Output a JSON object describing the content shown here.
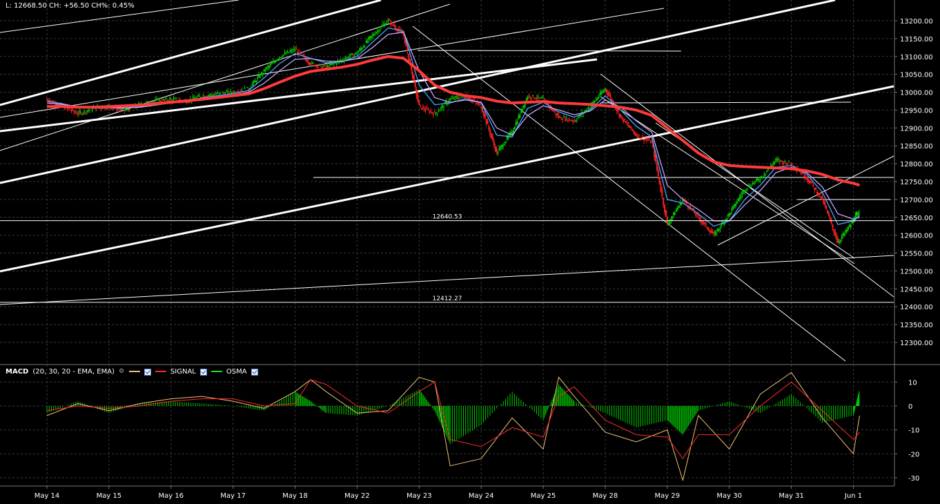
{
  "header": {
    "info_text": "L: 12668.50 CH: +56.50 CH%: 0.45%"
  },
  "macd_legend": {
    "title": "MACD",
    "params": "(20, 30, 20 - EMA, EMA)",
    "signal_label": "SIGNAL",
    "osma_label": "OSMA",
    "wrench_icon": "wrench-icon",
    "colors": {
      "macd": "#f2c27a",
      "signal": "#ff2a2a",
      "osma": "#22dd22"
    }
  },
  "price_labels": {
    "level_1": "12640.53",
    "level_2": "12412.27"
  },
  "colors": {
    "background": "#000000",
    "price_up": "#00cc00",
    "price_down": "#ff2222",
    "ema_fast": "#4aa8ff",
    "ema_mid": "#c9a6ff",
    "ma_slow": "#ff3a3a",
    "trendline": "#ffffff",
    "grid": "#3a3a3a"
  },
  "chart_data": [
    {
      "type": "line",
      "name": "price",
      "ylim": [
        12250,
        13250
      ],
      "yticks": [
        12300,
        12350,
        12400,
        12450,
        12500,
        12550,
        12600,
        12650,
        12700,
        12750,
        12800,
        12850,
        12900,
        12950,
        13000,
        13050,
        13100,
        13150,
        13200
      ],
      "ytick_labels": [
        "12300.00",
        "12350.00",
        "12400.00",
        "12450.00",
        "12500.00",
        "12550.00",
        "12600.00",
        "12650.00",
        "12700.00",
        "12750.00",
        "12800.00",
        "12850.00",
        "12900.00",
        "12950.00",
        "13000.00",
        "13050.00",
        "13100.00",
        "13150.00",
        "13200.00"
      ],
      "xticks": [
        "May 14",
        "May 15",
        "May 16",
        "May 17",
        "May 18",
        "May 22",
        "May 23",
        "May 24",
        "May 25",
        "May 28",
        "May 29",
        "May 30",
        "May 31",
        "Jun 1"
      ],
      "x": [
        0,
        0.25,
        0.5,
        0.75,
        1,
        1.25,
        1.5,
        1.75,
        2,
        2.25,
        2.5,
        2.75,
        3,
        3.25,
        3.5,
        3.75,
        4,
        4.25,
        4.5,
        4.75,
        5,
        5.25,
        5.5,
        5.75,
        6,
        6.25,
        6.5,
        6.75,
        7,
        7.25,
        7.5,
        7.75,
        8,
        8.25,
        8.5,
        8.75,
        9,
        9.25,
        9.5,
        9.75,
        10,
        10.25,
        10.5,
        10.75,
        11,
        11.25,
        11.5,
        11.75,
        12,
        12.25,
        12.5,
        12.75,
        13,
        13.1
      ],
      "series": [
        {
          "values": [
            12980,
            12960,
            12940,
            12955,
            12960,
            12950,
            12965,
            12975,
            12980,
            12975,
            12990,
            12995,
            13000,
            13010,
            13060,
            13100,
            13120,
            13080,
            13070,
            13090,
            13110,
            13160,
            13200,
            13160,
            12960,
            12940,
            12980,
            12990,
            12960,
            12830,
            12890,
            12990,
            12980,
            12930,
            12920,
            12960,
            13010,
            12930,
            12880,
            12860,
            12630,
            12700,
            12650,
            12600,
            12660,
            12730,
            12760,
            12810,
            12800,
            12760,
            12700,
            12580,
            12640,
            12670
          ]
        },
        {
          "values": [
            12975,
            12968,
            12958,
            12955,
            12957,
            12955,
            12960,
            12968,
            12975,
            12976,
            12984,
            12990,
            12996,
            13005,
            13040,
            13080,
            13108,
            13095,
            13082,
            13085,
            13100,
            13140,
            13180,
            13170,
            13020,
            12965,
            12970,
            12982,
            12970,
            12880,
            12875,
            12955,
            12972,
            12945,
            12930,
            12950,
            12990,
            12950,
            12905,
            12875,
            12700,
            12690,
            12660,
            12625,
            12640,
            12700,
            12740,
            12790,
            12795,
            12770,
            12720,
            12630,
            12640,
            12655
          ]
        },
        {
          "values": [
            12970,
            12966,
            12960,
            12957,
            12957,
            12956,
            12958,
            12964,
            12970,
            12973,
            12980,
            12986,
            12992,
            13000,
            13025,
            13060,
            13092,
            13094,
            13087,
            13086,
            13094,
            13125,
            13162,
            13168,
            13060,
            12985,
            12972,
            12978,
            12972,
            12900,
            12880,
            12935,
            12962,
            12950,
            12937,
            12947,
            12978,
            12958,
            12920,
            12888,
            12740,
            12700,
            12672,
            12640,
            12640,
            12685,
            12725,
            12775,
            12790,
            12775,
            12735,
            12660,
            12645,
            12650
          ]
        },
        {
          "values": [
            12960,
            12960,
            12958,
            12958,
            12960,
            12962,
            12964,
            12968,
            12972,
            12976,
            12980,
            12985,
            12990,
            12995,
            13010,
            13028,
            13045,
            13058,
            13064,
            13070,
            13078,
            13090,
            13100,
            13095,
            13060,
            13020,
            13000,
            12990,
            12985,
            12975,
            12970,
            12972,
            12974,
            12970,
            12968,
            12966,
            12962,
            12958,
            12950,
            12935,
            12900,
            12865,
            12830,
            12805,
            12795,
            12792,
            12790,
            12788,
            12786,
            12780,
            12770,
            12755,
            12745,
            12740
          ]
        }
      ],
      "horizontal_levels": [
        12640.53,
        12412.27
      ]
    },
    {
      "type": "bar",
      "name": "MACD",
      "ylim": [
        -33,
        15
      ],
      "yticks": [
        10,
        0,
        -10,
        -20,
        -30
      ],
      "x": [
        0,
        0.5,
        1,
        1.5,
        2,
        2.5,
        3,
        3.5,
        4,
        4.25,
        4.5,
        5,
        5.5,
        6,
        6.25,
        6.5,
        7,
        7.5,
        8,
        8.25,
        8.5,
        9,
        9.5,
        10,
        10.25,
        10.5,
        11,
        11.5,
        12,
        12.5,
        13,
        13.1
      ],
      "series": [
        {
          "name": "OSMA",
          "values": [
            -3,
            2,
            -3,
            1,
            2,
            1,
            0,
            -2,
            6,
            2,
            -3,
            -4,
            0,
            7,
            -2,
            -16,
            -8,
            6,
            -6,
            9,
            2,
            -3,
            -9,
            -6,
            -12,
            -2,
            2,
            -3,
            5,
            -7,
            -4,
            7
          ]
        },
        {
          "name": "MACD",
          "values": [
            -4,
            1,
            -2,
            1,
            3,
            4,
            2,
            -1,
            6,
            11,
            6,
            -3,
            -2,
            12,
            10,
            -25,
            -22,
            -5,
            -18,
            12,
            4,
            -11,
            -15,
            -10,
            -31,
            -4,
            -18,
            5,
            14,
            -5,
            -20,
            -4
          ]
        },
        {
          "name": "SIGNAL",
          "values": [
            -2,
            0,
            -1,
            0,
            2,
            3,
            3,
            0,
            1,
            11,
            9,
            0,
            -3,
            6,
            10,
            -14,
            -17,
            -9,
            -13,
            4,
            8,
            -6,
            -12,
            -13,
            -22,
            -12,
            -12,
            0,
            10,
            -2,
            -14,
            -11
          ]
        }
      ]
    }
  ]
}
